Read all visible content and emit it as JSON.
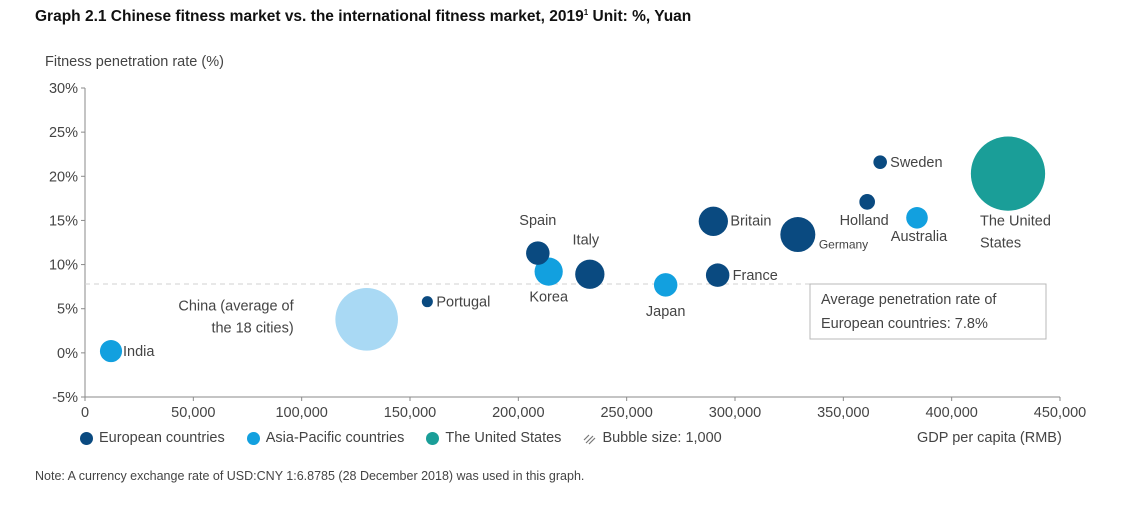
{
  "title_main": "Graph 2.1 Chinese fitness market vs. the international fitness market, 2019",
  "title_sup": "1",
  "title_unit": " Unit: %, Yuan",
  "note": "Note: A currency exchange rate of USD:CNY 1:6.8785 (28 December 2018) was used in this graph.",
  "chart_data": {
    "type": "scatter",
    "subtype": "bubble",
    "ylabel": "Fitness penetration rate (%)",
    "xlabel": "GDP per capita (RMB)",
    "xlim": [
      0,
      450000
    ],
    "ylim": [
      -5,
      30
    ],
    "x_ticks": [
      0,
      50000,
      100000,
      150000,
      200000,
      250000,
      300000,
      350000,
      400000,
      450000
    ],
    "x_tick_labels": [
      "0",
      "50,000",
      "100,000",
      "150,000",
      "200,000",
      "250,000",
      "300,000",
      "350,000",
      "400,000",
      "450,000"
    ],
    "y_ticks": [
      -5,
      0,
      5,
      10,
      15,
      20,
      25,
      30
    ],
    "y_tick_labels": [
      "-5%",
      "0%",
      "5%",
      "10%",
      "15%",
      "20%",
      "25%",
      "30%"
    ],
    "grid": false,
    "reference_line": {
      "y": 7.8,
      "style": "dashed"
    },
    "annotation": {
      "lines": [
        "Average penetration rate of",
        "European countries: 7.8%"
      ]
    },
    "colors": {
      "european": "#0a4a80",
      "asia_pacific": "#12a0df",
      "united_states": "#1a9e98",
      "china": "#a9d9f4"
    },
    "legend": {
      "european": "European countries",
      "asia_pacific": "Asia-Pacific countries",
      "united_states": "The United States",
      "bubble_size": "Bubble size: 1,000"
    },
    "points": [
      {
        "label_lines": [
          "India"
        ],
        "x": 12000,
        "y": 0.2,
        "size": 0.4,
        "group": "asia_pacific"
      },
      {
        "label_lines": [
          "China (average of",
          "the 18 cities)"
        ],
        "x": 130000,
        "y": 3.8,
        "size": 3.2,
        "group": "china"
      },
      {
        "label_lines": [
          "Portugal"
        ],
        "x": 158000,
        "y": 5.8,
        "size": 0.1,
        "group": "european"
      },
      {
        "label_lines": [
          "Spain"
        ],
        "x": 209000,
        "y": 11.3,
        "size": 0.45,
        "group": "european"
      },
      {
        "label_lines": [
          "Korea"
        ],
        "x": 214000,
        "y": 9.2,
        "size": 0.65,
        "group": "asia_pacific"
      },
      {
        "label_lines": [
          "Italy"
        ],
        "x": 233000,
        "y": 8.9,
        "size": 0.7,
        "group": "european"
      },
      {
        "label_lines": [
          "Japan"
        ],
        "x": 268000,
        "y": 7.7,
        "size": 0.45,
        "group": "asia_pacific"
      },
      {
        "label_lines": [
          "Britain"
        ],
        "x": 290000,
        "y": 14.9,
        "size": 0.7,
        "group": "european"
      },
      {
        "label_lines": [
          "France"
        ],
        "x": 292000,
        "y": 8.8,
        "size": 0.45,
        "group": "european"
      },
      {
        "label_lines": [
          "Germany"
        ],
        "x": 329000,
        "y": 13.4,
        "size": 1.0,
        "group": "european"
      },
      {
        "label_lines": [
          "Holland"
        ],
        "x": 361000,
        "y": 17.1,
        "size": 0.2,
        "group": "european"
      },
      {
        "label_lines": [
          "Sweden"
        ],
        "x": 367000,
        "y": 21.6,
        "size": 0.15,
        "group": "european"
      },
      {
        "label_lines": [
          "Australia"
        ],
        "x": 384000,
        "y": 15.3,
        "size": 0.38,
        "group": "asia_pacific"
      },
      {
        "label_lines": [
          "The United",
          "States"
        ],
        "x": 426000,
        "y": 20.3,
        "size": 4.5,
        "group": "united_states"
      }
    ]
  }
}
